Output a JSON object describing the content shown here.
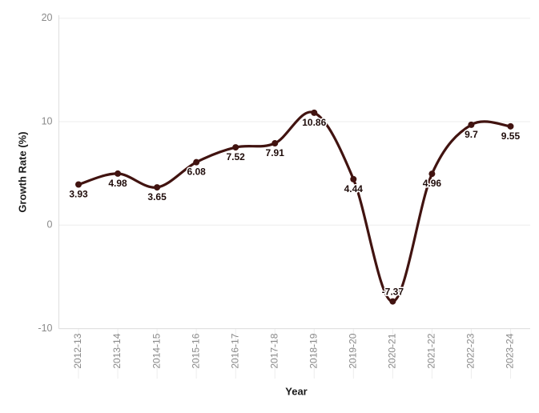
{
  "chart_data": {
    "type": "line",
    "title": "",
    "xlabel": "Year",
    "ylabel": "Growth Rate (%)",
    "categories": [
      "2012-13",
      "2013-14",
      "2014-15",
      "2015-16",
      "2016-17",
      "2017-18",
      "2018-19",
      "2019-20",
      "2020-21",
      "2021-22",
      "2022-23",
      "2023-24"
    ],
    "values": [
      3.93,
      4.98,
      3.65,
      6.08,
      7.52,
      7.91,
      10.86,
      4.44,
      -7.37,
      4.96,
      9.7,
      9.55
    ],
    "point_labels": [
      "3.93",
      "4.98",
      "3.65",
      "6.08",
      "7.52",
      "7.91",
      "10.86",
      "4.44",
      "-7.37",
      "4.96",
      "9.7",
      "9.55"
    ],
    "y_ticks": [
      20,
      10,
      0,
      -10
    ],
    "ylim": [
      -10,
      20.3
    ],
    "grid": "horizontal",
    "legend": "none",
    "smoothed_line": true,
    "colors": {
      "line": "#411310",
      "marker": "#411310",
      "point_label": "#200d0b",
      "point_label_halo": "#ffffff",
      "grid": "#ededed",
      "axis_line": "#dedede",
      "tick_label": "#8a8a8a",
      "axis_title": "#1a1a1a",
      "background": "#ffffff"
    }
  }
}
